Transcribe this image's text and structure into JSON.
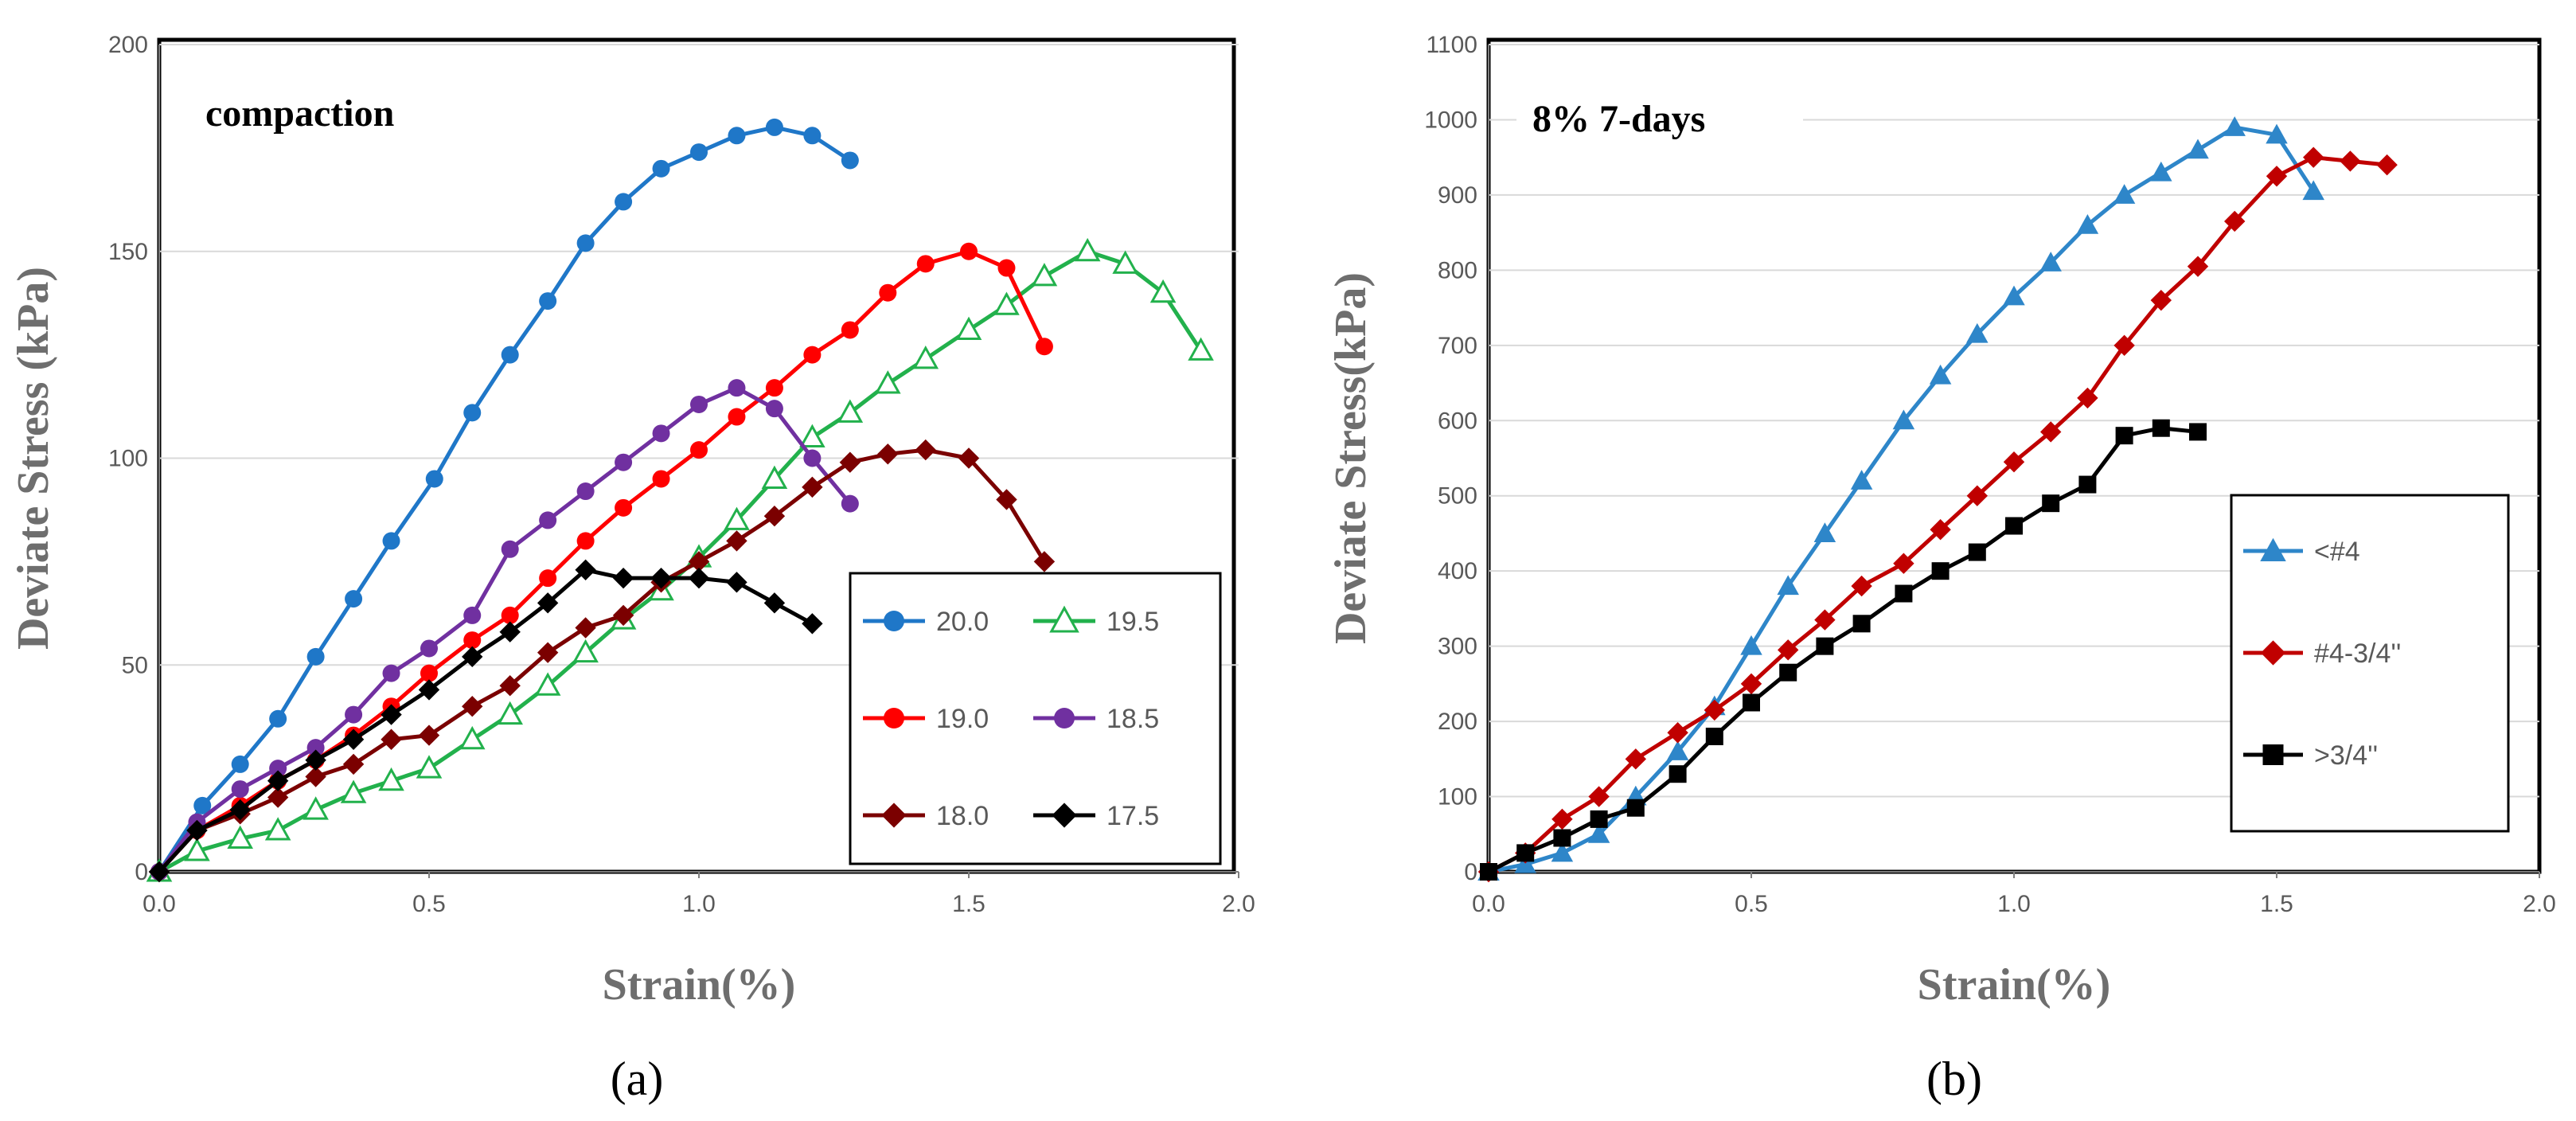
{
  "chart_data": [
    {
      "type": "line",
      "title": "compaction",
      "xlabel": "Strain(%)",
      "ylabel": "Deviate Stress (kPa)",
      "xlim": [
        0,
        2.0
      ],
      "ylim": [
        0,
        200
      ],
      "xticks": [
        "0.0",
        "0.5",
        "1.0",
        "1.5",
        "2.0"
      ],
      "yticks": [
        "0",
        "50",
        "100",
        "150",
        "200"
      ],
      "grid": "horizontal",
      "legend": "bottom-right",
      "caption": "(a)",
      "series": [
        {
          "name": "20.0",
          "color": "#1f77c8",
          "marker": "circle",
          "x": [
            0,
            0.08,
            0.15,
            0.22,
            0.29,
            0.36,
            0.43,
            0.51,
            0.58,
            0.65,
            0.72,
            0.79,
            0.86,
            0.93,
            1.0,
            1.07,
            1.14,
            1.21,
            1.28
          ],
          "y": [
            0,
            16,
            26,
            37,
            52,
            66,
            80,
            95,
            111,
            125,
            138,
            152,
            162,
            170,
            174,
            178,
            180,
            178,
            172
          ]
        },
        {
          "name": "19.5",
          "color": "#22b14c",
          "marker": "triangle-open",
          "x": [
            0,
            0.07,
            0.15,
            0.22,
            0.29,
            0.36,
            0.43,
            0.5,
            0.58,
            0.65,
            0.72,
            0.79,
            0.86,
            0.93,
            1.0,
            1.07,
            1.14,
            1.21,
            1.28,
            1.35,
            1.42,
            1.5,
            1.57,
            1.64,
            1.72,
            1.79,
            1.86,
            1.93
          ],
          "y": [
            0,
            5,
            8,
            10,
            15,
            19,
            22,
            25,
            32,
            38,
            45,
            53,
            61,
            68,
            76,
            85,
            95,
            105,
            111,
            118,
            124,
            131,
            137,
            144,
            150,
            147,
            140,
            126
          ]
        },
        {
          "name": "19.0",
          "color": "#ff0000",
          "marker": "circle",
          "x": [
            0,
            0.07,
            0.15,
            0.22,
            0.29,
            0.36,
            0.43,
            0.5,
            0.58,
            0.65,
            0.72,
            0.79,
            0.86,
            0.93,
            1.0,
            1.07,
            1.14,
            1.21,
            1.28,
            1.35,
            1.42,
            1.5,
            1.57,
            1.64
          ],
          "y": [
            0,
            10,
            16,
            22,
            27,
            33,
            40,
            48,
            56,
            62,
            71,
            80,
            88,
            95,
            102,
            110,
            117,
            125,
            131,
            140,
            147,
            150,
            146,
            127
          ]
        },
        {
          "name": "18.5",
          "color": "#7030a0",
          "marker": "circle",
          "x": [
            0,
            0.07,
            0.15,
            0.22,
            0.29,
            0.36,
            0.43,
            0.5,
            0.58,
            0.65,
            0.72,
            0.79,
            0.86,
            0.93,
            1.0,
            1.07,
            1.14,
            1.21,
            1.28
          ],
          "y": [
            0,
            12,
            20,
            25,
            30,
            38,
            48,
            54,
            62,
            78,
            85,
            92,
            99,
            106,
            113,
            117,
            112,
            100,
            89
          ]
        },
        {
          "name": "18.0",
          "color": "#7b0000",
          "marker": "diamond",
          "x": [
            0,
            0.07,
            0.15,
            0.22,
            0.29,
            0.36,
            0.43,
            0.5,
            0.58,
            0.65,
            0.72,
            0.79,
            0.86,
            0.93,
            1.0,
            1.07,
            1.14,
            1.21,
            1.28,
            1.35,
            1.42,
            1.5,
            1.57,
            1.64
          ],
          "y": [
            0,
            10,
            14,
            18,
            23,
            26,
            32,
            33,
            40,
            45,
            53,
            59,
            62,
            70,
            75,
            80,
            86,
            93,
            99,
            101,
            102,
            100,
            90,
            75
          ]
        },
        {
          "name": "17.5",
          "color": "#000000",
          "marker": "diamond",
          "x": [
            0,
            0.07,
            0.15,
            0.22,
            0.29,
            0.36,
            0.43,
            0.5,
            0.58,
            0.65,
            0.72,
            0.79,
            0.86,
            0.93,
            1.0,
            1.07,
            1.14,
            1.21
          ],
          "y": [
            0,
            10,
            15,
            22,
            27,
            32,
            38,
            44,
            52,
            58,
            65,
            73,
            71,
            71,
            71,
            70,
            65,
            60
          ]
        }
      ]
    },
    {
      "type": "line",
      "title": "8% 7-days",
      "xlabel": "Strain(%)",
      "ylabel": "Deviate Stress(kPa)",
      "xlim": [
        0,
        2.0
      ],
      "ylim": [
        0,
        1100
      ],
      "xticks": [
        "0.0",
        "0.5",
        "1.0",
        "1.5",
        "2.0"
      ],
      "yticks": [
        "0",
        "100",
        "200",
        "300",
        "400",
        "500",
        "600",
        "700",
        "800",
        "900",
        "1000",
        "1100"
      ],
      "grid": "horizontal",
      "legend": "right",
      "caption": "(b)",
      "series": [
        {
          "name": "<#4",
          "color": "#2e86c9",
          "marker": "triangle",
          "x": [
            0,
            0.07,
            0.14,
            0.21,
            0.28,
            0.36,
            0.43,
            0.5,
            0.57,
            0.64,
            0.71,
            0.79,
            0.86,
            0.93,
            1.0,
            1.07,
            1.14,
            1.21,
            1.28,
            1.35,
            1.42,
            1.5,
            1.57
          ],
          "y": [
            0,
            10,
            25,
            50,
            100,
            160,
            220,
            300,
            380,
            450,
            520,
            600,
            660,
            715,
            765,
            810,
            860,
            900,
            930,
            960,
            990,
            980,
            905
          ]
        },
        {
          "name": "#4-3/4''",
          "color": "#c00000",
          "marker": "diamond",
          "x": [
            0,
            0.07,
            0.14,
            0.21,
            0.28,
            0.36,
            0.43,
            0.5,
            0.57,
            0.64,
            0.71,
            0.79,
            0.86,
            0.93,
            1.0,
            1.07,
            1.14,
            1.21,
            1.28,
            1.35,
            1.42,
            1.5,
            1.57,
            1.64,
            1.71
          ],
          "y": [
            0,
            25,
            70,
            100,
            150,
            185,
            215,
            250,
            295,
            335,
            380,
            410,
            455,
            500,
            545,
            585,
            630,
            700,
            760,
            805,
            865,
            925,
            950,
            945,
            940
          ]
        },
        {
          "name": ">3/4''",
          "color": "#000000",
          "marker": "square",
          "x": [
            0,
            0.07,
            0.14,
            0.21,
            0.28,
            0.36,
            0.43,
            0.5,
            0.57,
            0.64,
            0.71,
            0.79,
            0.86,
            0.93,
            1.0,
            1.07,
            1.14,
            1.21,
            1.28,
            1.35
          ],
          "y": [
            0,
            25,
            45,
            70,
            85,
            130,
            180,
            225,
            265,
            300,
            330,
            370,
            400,
            425,
            460,
            490,
            515,
            580,
            590,
            585
          ]
        }
      ]
    }
  ]
}
